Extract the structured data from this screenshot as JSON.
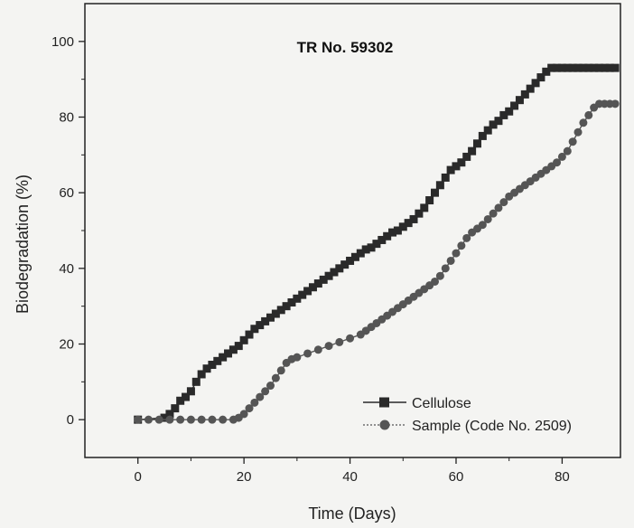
{
  "chart_data": {
    "type": "line",
    "title": "TR No. 59302",
    "xlabel": "Time (Days)",
    "ylabel": "Biodegradation (%)",
    "xlim": [
      -10,
      91
    ],
    "ylim": [
      -10,
      110
    ],
    "xticks": [
      0,
      20,
      40,
      60,
      80
    ],
    "yticks": [
      0,
      20,
      40,
      60,
      80,
      100
    ],
    "legend_position": "bottom-right",
    "grid": false,
    "series": [
      {
        "name": "Cellulose",
        "marker": "square",
        "color": "#2a2a2a",
        "x": [
          0,
          5,
          6,
          7,
          8,
          9,
          10,
          11,
          12,
          13,
          14,
          15,
          16,
          17,
          18,
          19,
          20,
          21,
          22,
          23,
          24,
          25,
          26,
          27,
          28,
          29,
          30,
          31,
          32,
          33,
          34,
          35,
          36,
          37,
          38,
          39,
          40,
          41,
          42,
          43,
          44,
          45,
          46,
          47,
          48,
          49,
          50,
          51,
          52,
          53,
          54,
          55,
          56,
          57,
          58,
          59,
          60,
          61,
          62,
          63,
          64,
          65,
          66,
          67,
          68,
          69,
          70,
          71,
          72,
          73,
          74,
          75,
          76,
          77,
          78,
          79,
          80,
          81,
          82,
          83,
          84,
          85,
          86,
          87,
          88,
          89,
          90
        ],
        "y": [
          0,
          0.5,
          1.5,
          3,
          5,
          6,
          7.5,
          10,
          12,
          13.5,
          14.5,
          15.5,
          16.5,
          17.5,
          18.5,
          19.5,
          21,
          22.5,
          24,
          25,
          26,
          27,
          28,
          29,
          30,
          31,
          32,
          33,
          34,
          35,
          36,
          37,
          38,
          39,
          40,
          41,
          42,
          43,
          44,
          45,
          45.5,
          46.5,
          47.5,
          48.5,
          49.5,
          50,
          51,
          52,
          53,
          54.5,
          56,
          58,
          60,
          62,
          64,
          66,
          67,
          68,
          69.5,
          71,
          73,
          75,
          76.5,
          78,
          79,
          80.5,
          81.5,
          83,
          84.5,
          86,
          87.5,
          89,
          90.5,
          92,
          93,
          93,
          93,
          93,
          93,
          93,
          93,
          93,
          93,
          93,
          93,
          93,
          93
        ]
      },
      {
        "name": "Sample (Code No. 2509)",
        "marker": "circle",
        "color": "#555555",
        "x": [
          0,
          2,
          4,
          6,
          8,
          10,
          12,
          14,
          16,
          18,
          19,
          20,
          21,
          22,
          23,
          24,
          25,
          26,
          27,
          28,
          29,
          30,
          32,
          34,
          36,
          38,
          40,
          42,
          43,
          44,
          45,
          46,
          47,
          48,
          49,
          50,
          51,
          52,
          53,
          54,
          55,
          56,
          57,
          58,
          59,
          60,
          61,
          62,
          63,
          64,
          65,
          66,
          67,
          68,
          69,
          70,
          71,
          72,
          73,
          74,
          75,
          76,
          77,
          78,
          79,
          80,
          81,
          82,
          83,
          84,
          85,
          86,
          87,
          88,
          89,
          90
        ],
        "y": [
          0,
          0,
          0,
          0,
          0,
          0,
          0,
          0,
          0,
          0,
          0.5,
          1.5,
          3,
          4.5,
          6,
          7.5,
          9,
          11,
          13,
          15,
          16,
          16.5,
          17.5,
          18.5,
          19.5,
          20.5,
          21.5,
          22.5,
          23.5,
          24.5,
          25.5,
          26.5,
          27.5,
          28.5,
          29.5,
          30.5,
          31.5,
          32.5,
          33.5,
          34.5,
          35.5,
          36.5,
          38,
          40,
          42,
          44,
          46,
          48,
          49.5,
          50.5,
          51.5,
          53,
          54.5,
          56,
          57.5,
          59,
          60,
          61,
          62,
          63,
          64,
          65,
          66,
          67,
          68,
          69.5,
          71,
          73.5,
          76,
          78.5,
          80.5,
          82.5,
          83.5,
          83.5,
          83.5,
          83.5
        ]
      }
    ]
  }
}
